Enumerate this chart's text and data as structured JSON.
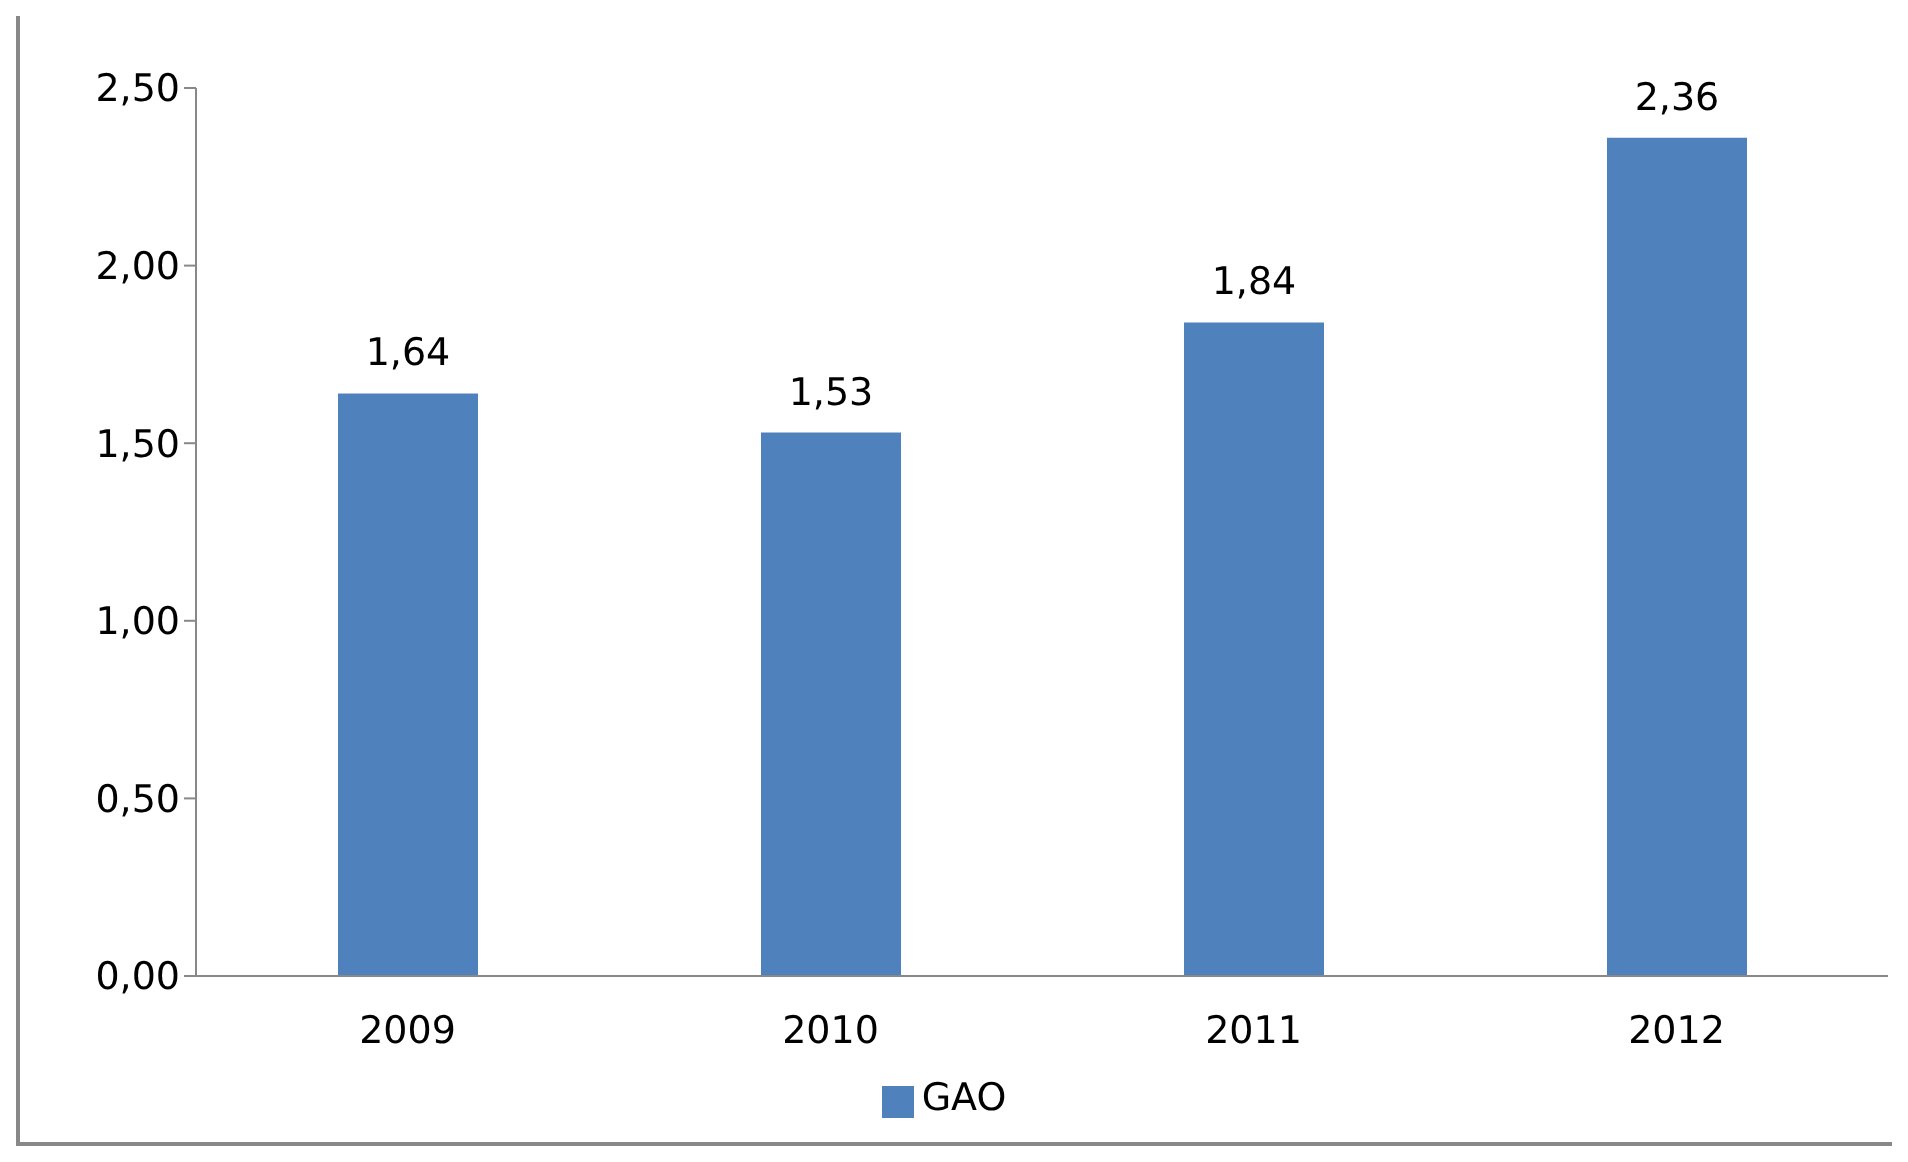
{
  "chart_data": {
    "type": "bar",
    "categories": [
      "2009",
      "2010",
      "2011",
      "2012"
    ],
    "series": [
      {
        "name": "GAO",
        "color": "#4f81bd",
        "values": [
          1.64,
          1.53,
          1.84,
          2.36
        ],
        "value_labels": [
          "1,64",
          "1,53",
          "1,84",
          "2,36"
        ]
      }
    ],
    "ylim": [
      0,
      2.5
    ],
    "yticks": [
      {
        "value": 0,
        "label": "0,00"
      },
      {
        "value": 0.5,
        "label": "0,50"
      },
      {
        "value": 1,
        "label": "1,00"
      },
      {
        "value": 1.5,
        "label": "1,50"
      },
      {
        "value": 2,
        "label": "2,00"
      },
      {
        "value": 2.5,
        "label": "2,50"
      }
    ],
    "grid": false,
    "legend": "bottom"
  }
}
